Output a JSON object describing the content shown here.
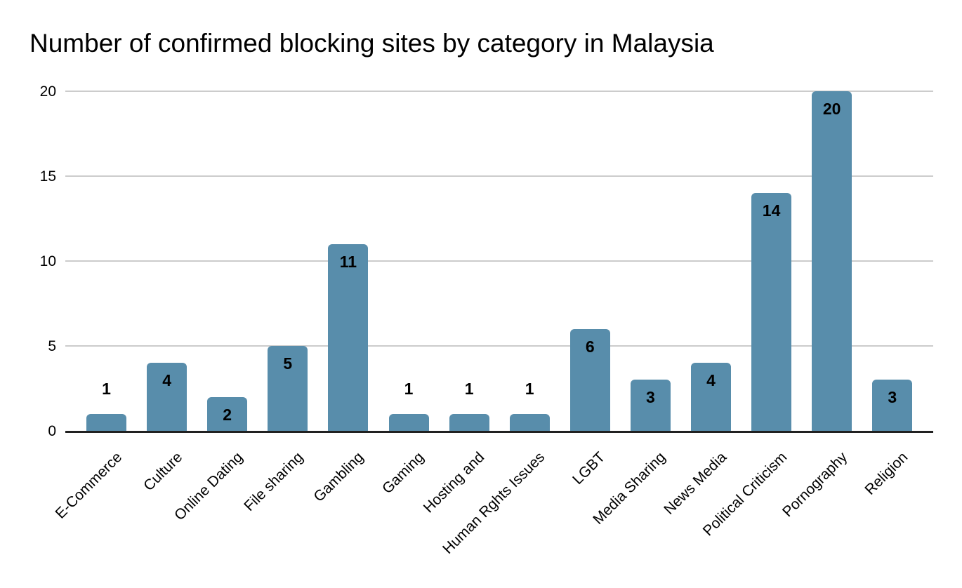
{
  "chart_data": {
    "type": "bar",
    "title": "Number of confirmed blocking sites by category in Malaysia",
    "categories": [
      "E-Commerce",
      "Culture",
      "Online Dating",
      "File sharing",
      "Gambling",
      "Gaming",
      "Hosting and",
      "Human Rghts Issues",
      "LGBT",
      "Media Sharing",
      "News Media",
      "Political Criticism",
      "Pornography",
      "Religion"
    ],
    "values": [
      1,
      4,
      2,
      5,
      11,
      1,
      1,
      1,
      6,
      3,
      4,
      14,
      20,
      3
    ],
    "xlabel": "",
    "ylabel": "",
    "ylim": [
      0,
      20
    ],
    "yticks": [
      0,
      5,
      10,
      15,
      20
    ],
    "grid": true,
    "legend_position": "none",
    "bar_color": "#588dab",
    "value_label_color": "#000000",
    "axis_text_color": "#000000",
    "gridline_color": "#cccccc",
    "axis_line_color": "#212121",
    "background_color": "#ffffff"
  }
}
